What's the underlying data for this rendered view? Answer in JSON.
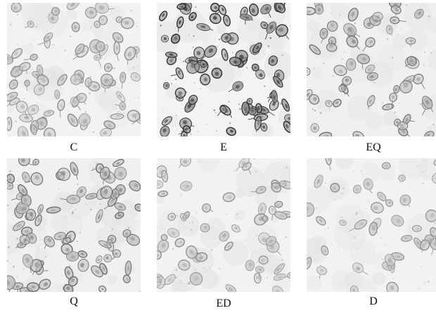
{
  "figure": {
    "panels": [
      {
        "id": "C",
        "label": "C",
        "tone": "light",
        "density": "high"
      },
      {
        "id": "E",
        "label": "E",
        "tone": "dark",
        "density": "high"
      },
      {
        "id": "EQ",
        "label": "EQ",
        "tone": "medium",
        "density": "medium"
      },
      {
        "id": "Q",
        "label": "Q",
        "tone": "medium",
        "density": "high"
      },
      {
        "id": "ED",
        "label": "ED",
        "tone": "light",
        "density": "medium"
      },
      {
        "id": "D",
        "label": "D",
        "tone": "light",
        "density": "low"
      }
    ]
  }
}
